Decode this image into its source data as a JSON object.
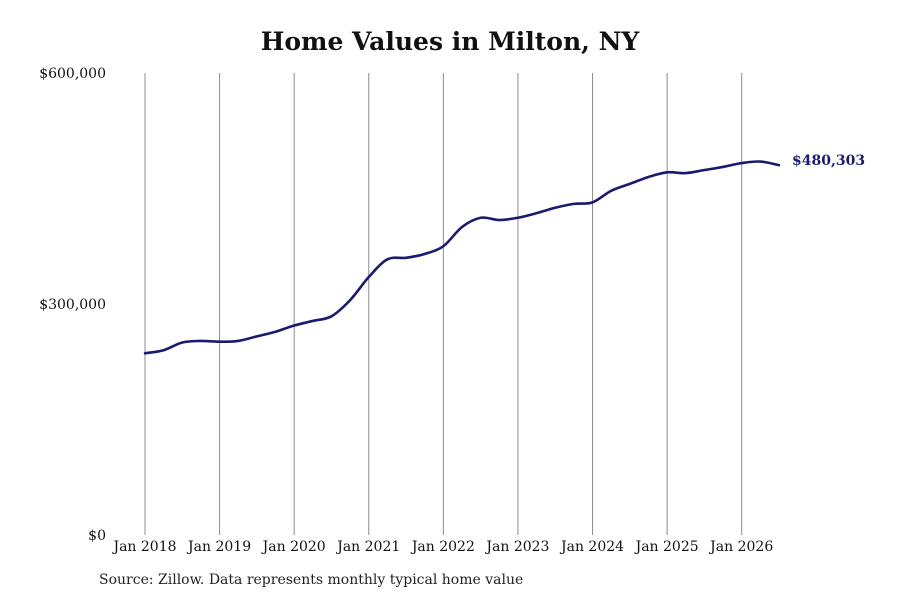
{
  "chart_data": {
    "type": "line",
    "title": "Home Values in Milton, NY",
    "source_note": "Source: Zillow. Data represents monthly typical home value",
    "xlabel": "",
    "ylabel": "",
    "ylim": [
      0,
      600000
    ],
    "y_ticks": [
      0,
      300000,
      600000
    ],
    "y_tick_labels": [
      "$0",
      "$300,000",
      "$600,000"
    ],
    "x_range": [
      "2018-01",
      "2026-07"
    ],
    "x_ticks": [
      "2018-01",
      "2019-01",
      "2020-01",
      "2021-01",
      "2022-01",
      "2023-01",
      "2024-01",
      "2025-01",
      "2026-01"
    ],
    "x_tick_labels": [
      "Jan 2018",
      "Jan 2019",
      "Jan 2020",
      "Jan 2021",
      "Jan 2022",
      "Jan 2023",
      "Jan 2024",
      "Jan 2025",
      "Jan 2026"
    ],
    "grid": "vertical",
    "series": [
      {
        "color": "#1a1a6e",
        "x": [
          "2018-01",
          "2018-04",
          "2018-07",
          "2018-10",
          "2019-01",
          "2019-04",
          "2019-07",
          "2019-10",
          "2020-01",
          "2020-04",
          "2020-07",
          "2020-10",
          "2021-01",
          "2021-04",
          "2021-07",
          "2021-10",
          "2022-01",
          "2022-04",
          "2022-07",
          "2022-10",
          "2023-01",
          "2023-04",
          "2023-07",
          "2023-10",
          "2024-01",
          "2024-04",
          "2024-07",
          "2024-10",
          "2025-01",
          "2025-04",
          "2025-07",
          "2025-10",
          "2026-01",
          "2026-04",
          "2026-07"
        ],
        "values": [
          236000,
          240000,
          250000,
          252000,
          251000,
          252000,
          258000,
          264000,
          272000,
          278000,
          284000,
          305000,
          335000,
          358000,
          360000,
          365000,
          375000,
          400000,
          412000,
          409000,
          412000,
          418000,
          425000,
          430000,
          432000,
          447000,
          456000,
          465000,
          471000,
          470000,
          474000,
          478000,
          483000,
          485000,
          480303
        ]
      }
    ],
    "end_label": "$480,303"
  }
}
